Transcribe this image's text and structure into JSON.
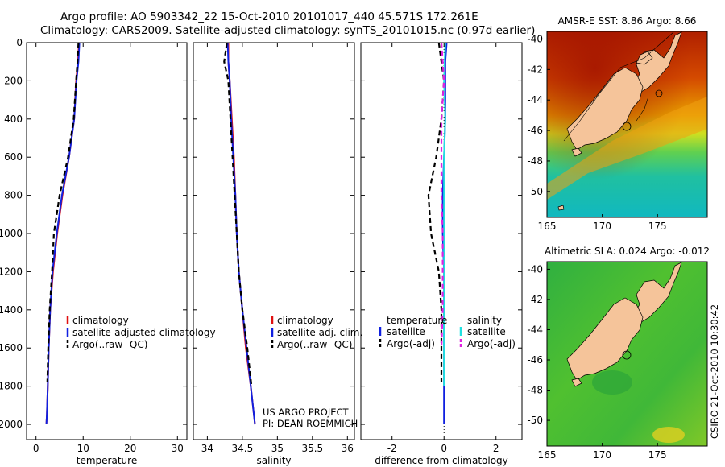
{
  "header": {
    "line1": "Argo profile: AO 5903342_22 15-Oct-2010 20101017_440 45.571S 172.261E",
    "line2": "Climatology: CARS2009. Satellite-adjusted climatology: synTS_20101015.nc (0.97d earlier)"
  },
  "credits": {
    "project": "US ARGO PROJECT",
    "pi": "PI: DEAN ROEMMICH",
    "stamp": "CSIRO 21-Oct-2010 10:30:42"
  },
  "colors": {
    "climatology": "#e01010",
    "satellite": "#1020e0",
    "argo": "#000000",
    "sal_sat": "#20e0e0",
    "sal_argo": "#e020e0",
    "land": "#f5c49a"
  },
  "chart_data": [
    {
      "type": "line",
      "title": "",
      "xlabel": "temperature",
      "ylabel": "",
      "xlim": [
        -2,
        32
      ],
      "ylim": [
        2080,
        0
      ],
      "y_reversed": true,
      "x_ticks": [
        "0",
        "10",
        "20",
        "30"
      ],
      "x_tick_values": [
        0,
        10,
        20,
        30
      ],
      "y_ticks": [
        "0",
        "200",
        "400",
        "600",
        "800",
        "1000",
        "1200",
        "1400",
        "1600",
        "1800",
        "2000"
      ],
      "y_tick_values": [
        0,
        200,
        400,
        600,
        800,
        1000,
        1200,
        1400,
        1600,
        1800,
        2000
      ],
      "legend": [
        "climatology",
        "satellite-adjusted climatology",
        "Argo(..raw -QC)"
      ],
      "series": [
        {
          "name": "climatology",
          "style": "solid",
          "color": "#e01010",
          "x": [
            9.1,
            8.9,
            8.5,
            8.1,
            7.0,
            5.6,
            4.5,
            3.6,
            3.0,
            2.7,
            2.5,
            2.3,
            2.2
          ],
          "y": [
            0,
            100,
            200,
            400,
            600,
            800,
            1000,
            1200,
            1400,
            1600,
            1800,
            1950,
            2000
          ]
        },
        {
          "name": "satellite-adjusted climatology",
          "style": "solid",
          "color": "#1020e0",
          "x": [
            9.2,
            9.0,
            8.6,
            8.1,
            7.0,
            5.5,
            4.4,
            3.5,
            3.0,
            2.7,
            2.5,
            2.3,
            2.2
          ],
          "y": [
            0,
            100,
            200,
            400,
            600,
            800,
            1000,
            1200,
            1400,
            1600,
            1800,
            1950,
            2000
          ]
        },
        {
          "name": "Argo(..raw -QC)",
          "style": "dashed",
          "color": "#000000",
          "x": [
            9.0,
            8.8,
            8.5,
            8.0,
            6.8,
            5.0,
            3.8,
            3.4,
            2.9,
            2.6,
            2.4
          ],
          "y": [
            0,
            100,
            200,
            400,
            600,
            800,
            1000,
            1200,
            1400,
            1600,
            1780
          ]
        }
      ]
    },
    {
      "type": "line",
      "title": "",
      "xlabel": "salinity",
      "ylabel": "",
      "xlim": [
        33.8,
        36.1
      ],
      "ylim": [
        2080,
        0
      ],
      "y_reversed": true,
      "x_ticks": [
        "34",
        "34.5",
        "35",
        "35.5",
        "36"
      ],
      "x_tick_values": [
        34,
        34.5,
        35,
        35.5,
        36
      ],
      "legend": [
        "climatology",
        "satellite adj. clim.",
        "Argo(..raw -QC)"
      ],
      "series": [
        {
          "name": "climatology",
          "style": "solid",
          "color": "#e01010",
          "x": [
            34.3,
            34.3,
            34.32,
            34.35,
            34.38,
            34.4,
            34.42,
            34.45,
            34.5,
            34.55,
            34.62,
            34.68
          ],
          "y": [
            0,
            100,
            200,
            400,
            600,
            800,
            1000,
            1200,
            1400,
            1600,
            1800,
            2000
          ]
        },
        {
          "name": "satellite adj. clim.",
          "style": "solid",
          "color": "#1020e0",
          "x": [
            34.29,
            34.3,
            34.32,
            34.34,
            34.37,
            34.4,
            34.42,
            34.45,
            34.5,
            34.56,
            34.62,
            34.68
          ],
          "y": [
            0,
            100,
            200,
            400,
            600,
            800,
            1000,
            1200,
            1400,
            1600,
            1800,
            2000
          ]
        },
        {
          "name": "Argo(..raw -QC)",
          "style": "dashed",
          "color": "#000000",
          "x": [
            34.28,
            34.24,
            34.3,
            34.33,
            34.36,
            34.39,
            34.42,
            34.45,
            34.5,
            34.57,
            34.63
          ],
          "y": [
            0,
            100,
            200,
            400,
            600,
            800,
            1000,
            1200,
            1400,
            1600,
            1800
          ]
        }
      ]
    },
    {
      "type": "line",
      "title": "",
      "xlabel": "difference from climatology",
      "ylabel": "",
      "xlim": [
        -3.2,
        3.0
      ],
      "ylim": [
        2080,
        0
      ],
      "y_reversed": true,
      "x_ticks": [
        "-2",
        "0",
        "2"
      ],
      "x_tick_values": [
        -2,
        0,
        2
      ],
      "legend_groups": [
        {
          "heading": "temperature",
          "items": [
            "satellite",
            "Argo(-adj)"
          ]
        },
        {
          "heading": "salinity",
          "items": [
            "satellite",
            "Argo(-adj)"
          ]
        }
      ],
      "series": [
        {
          "name": "temperature satellite",
          "style": "solid",
          "color": "#1020e0",
          "x": [
            0.1,
            0.05,
            0.05,
            0.05,
            0.0,
            -0.05,
            -0.05,
            0.0,
            0.0,
            0.0,
            0.0,
            0.0
          ],
          "y": [
            0,
            100,
            200,
            400,
            600,
            800,
            1000,
            1200,
            1400,
            1600,
            1800,
            2000
          ]
        },
        {
          "name": "temperature Argo(-adj)",
          "style": "dashed",
          "color": "#000000",
          "x": [
            -0.2,
            -0.1,
            0.0,
            -0.1,
            -0.3,
            -0.6,
            -0.5,
            -0.2,
            -0.1,
            -0.1,
            -0.1
          ],
          "y": [
            0,
            100,
            200,
            400,
            600,
            800,
            1000,
            1200,
            1400,
            1600,
            1780
          ]
        },
        {
          "name": "salinity satellite",
          "style": "solid",
          "color": "#20e0e0",
          "x": [
            0.05,
            0.0,
            0.05,
            0.0,
            0.0,
            0.0,
            0.0,
            0.0,
            0.0,
            0.0
          ],
          "y": [
            0,
            200,
            400,
            600,
            800,
            1000,
            1200,
            1400,
            1600,
            1800
          ]
        },
        {
          "name": "salinity Argo(-adj)",
          "style": "dashed",
          "color": "#e020e0",
          "x": [
            -0.1,
            -0.05,
            0.0,
            -0.1,
            -0.1,
            -0.1,
            -0.05,
            -0.05,
            -0.05,
            -0.1
          ],
          "y": [
            0,
            100,
            200,
            400,
            600,
            800,
            1000,
            1200,
            1400,
            1600
          ]
        }
      ]
    },
    {
      "type": "heatmap",
      "title": "AMSR-E SST: 8.86 Argo: 8.66",
      "xlim": [
        165,
        179.5
      ],
      "ylim": [
        -51.7,
        -39.5
      ],
      "x_ticks": [
        "165",
        "170",
        "175"
      ],
      "x_tick_values": [
        165,
        170,
        175
      ],
      "y_ticks": [
        "-40",
        "-42",
        "-44",
        "-46",
        "-48",
        "-50"
      ],
      "y_tick_values": [
        -40,
        -42,
        -44,
        -46,
        -48,
        -50
      ],
      "profile_location": {
        "lon": 172.261,
        "lat": -45.571
      }
    },
    {
      "type": "heatmap",
      "title": "Altimetric SLA: 0.024 Argo: -0.012",
      "xlim": [
        165,
        179.5
      ],
      "ylim": [
        -51.7,
        -39.5
      ],
      "x_ticks": [
        "165",
        "170",
        "175"
      ],
      "x_tick_values": [
        165,
        170,
        175
      ],
      "y_ticks": [
        "-40",
        "-42",
        "-44",
        "-46",
        "-48",
        "-50"
      ],
      "y_tick_values": [
        -40,
        -42,
        -44,
        -46,
        -48,
        -50
      ],
      "profile_location": {
        "lon": 172.261,
        "lat": -45.571
      }
    }
  ]
}
